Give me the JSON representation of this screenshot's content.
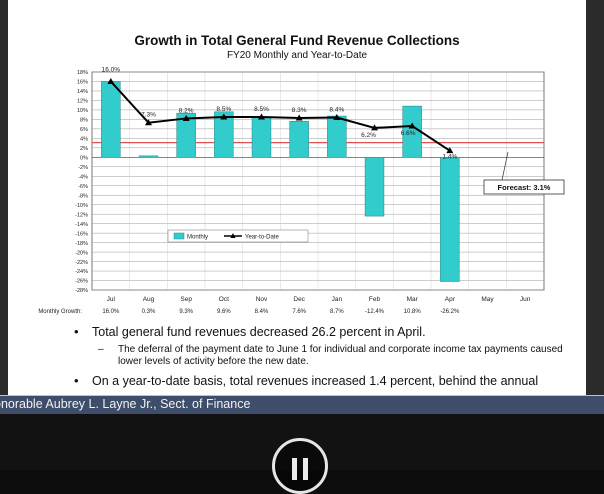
{
  "slide": {
    "title": "Growth in Total General Fund Revenue Collections",
    "subtitle": "FY20 Monthly and Year-to-Date",
    "forecast_label": "Forecast: 3.1%",
    "monthly_growth_label": "Monthly Growth:"
  },
  "chart_data": {
    "type": "bar",
    "title": "Growth in Total General Fund Revenue Collections",
    "subtitle": "FY20 Monthly and Year-to-Date",
    "categories": [
      "Jul",
      "Aug",
      "Sep",
      "Oct",
      "Nov",
      "Dec",
      "Jan",
      "Feb",
      "Mar",
      "Apr",
      "May",
      "Jun"
    ],
    "ylim": [
      -28,
      18
    ],
    "yticks": [
      "18%",
      "16%",
      "14%",
      "12%",
      "10%",
      "8%",
      "6%",
      "4%",
      "2%",
      "0%",
      "-2%",
      "-4%",
      "-6%",
      "-8%",
      "-10%",
      "-12%",
      "-14%",
      "-16%",
      "-18%",
      "-20%",
      "-22%",
      "-24%",
      "-26%",
      "-28%"
    ],
    "grid": true,
    "legend_placement": "middle-left",
    "series": [
      {
        "name": "Monthly",
        "kind": "bar",
        "values": [
          16.0,
          0.3,
          9.3,
          9.6,
          8.4,
          7.6,
          8.7,
          -12.4,
          10.8,
          -26.2,
          null,
          null
        ],
        "table_labels": [
          "16.0%",
          "0.3%",
          "9.3%",
          "9.6%",
          "8.4%",
          "7.6%",
          "8.7%",
          "-12.4%",
          "10.8%",
          "-26.2%",
          "",
          ""
        ],
        "color": "#33cccc"
      },
      {
        "name": "Year-to-Date",
        "kind": "line",
        "values": [
          16.0,
          7.3,
          8.2,
          8.5,
          8.5,
          8.3,
          8.4,
          6.2,
          6.6,
          1.4,
          null,
          null
        ],
        "point_labels": [
          "16.0%",
          "7.3%",
          "8.2%",
          "8.5%",
          "8.5%",
          "8.3%",
          "8.4%",
          "6.2%",
          "6.6%",
          "1.4%",
          "",
          ""
        ],
        "color": "#000000"
      }
    ],
    "forecast": {
      "label": "Forecast: 3.1%",
      "value": 3.1,
      "line_color": "#e05050"
    }
  },
  "bullets": {
    "b1": "Total general fund revenues decreased 26.2 percent in April.",
    "b2": "The deferral of the payment date to June 1 for individual and corporate income tax payments caused lower levels of activity before the new date.",
    "b3": "On a year-to-date basis, total revenues increased 1.4 percent, behind the annual"
  },
  "caption": "onorable Aubrey L. Layne Jr., Sect. of Finance",
  "colors": {
    "caption_strip": "#3d4d6a",
    "player": "#121212"
  },
  "icons": {
    "pause": "pause-icon"
  }
}
